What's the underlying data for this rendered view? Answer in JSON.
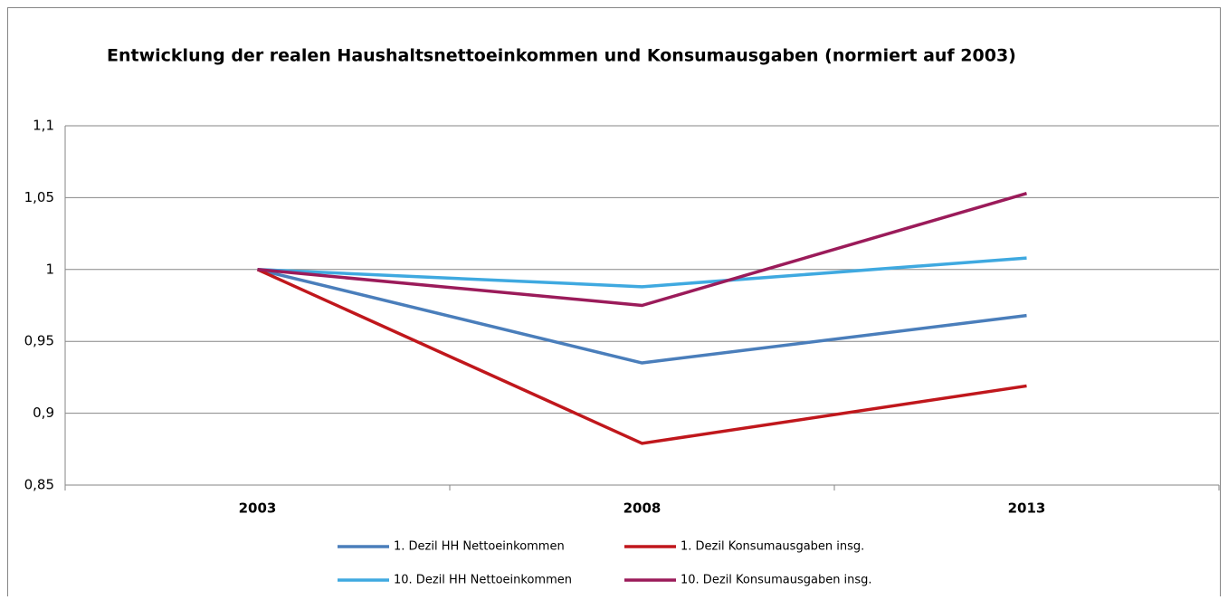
{
  "chart_data": {
    "type": "line",
    "title": "Entwicklung der realen Haushaltsnettoeinkommen und  Konsumausgaben (normiert auf 2003)",
    "categories": [
      "2003",
      "2008",
      "2013"
    ],
    "series": [
      {
        "name": "1. Dezil HH Nettoeinkommen",
        "color": "#4a7ebb",
        "values": [
          1,
          0.935,
          0.968
        ]
      },
      {
        "name": "1. Dezil Konsumausgaben insg.",
        "color": "#c0171c",
        "values": [
          1,
          0.879,
          0.919
        ]
      },
      {
        "name": "10. Dezil HH Nettoeinkommen",
        "color": "#3fa9e0",
        "values": [
          1,
          0.988,
          1.008
        ]
      },
      {
        "name": "10. Dezil Konsumausgaben insg.",
        "color": "#9b1b5a",
        "values": [
          1,
          0.975,
          1.053
        ]
      }
    ],
    "ylim": [
      0.85,
      1.1
    ],
    "yticks": [
      {
        "value": 0.85,
        "label": "0,85"
      },
      {
        "value": 0.9,
        "label": "0,9"
      },
      {
        "value": 0.95,
        "label": "0,95"
      },
      1,
      {
        "value": 1.05,
        "label": "1,05"
      },
      {
        "value": 1.1,
        "label": "1,1"
      }
    ],
    "grid": true,
    "legend": "bottom"
  }
}
